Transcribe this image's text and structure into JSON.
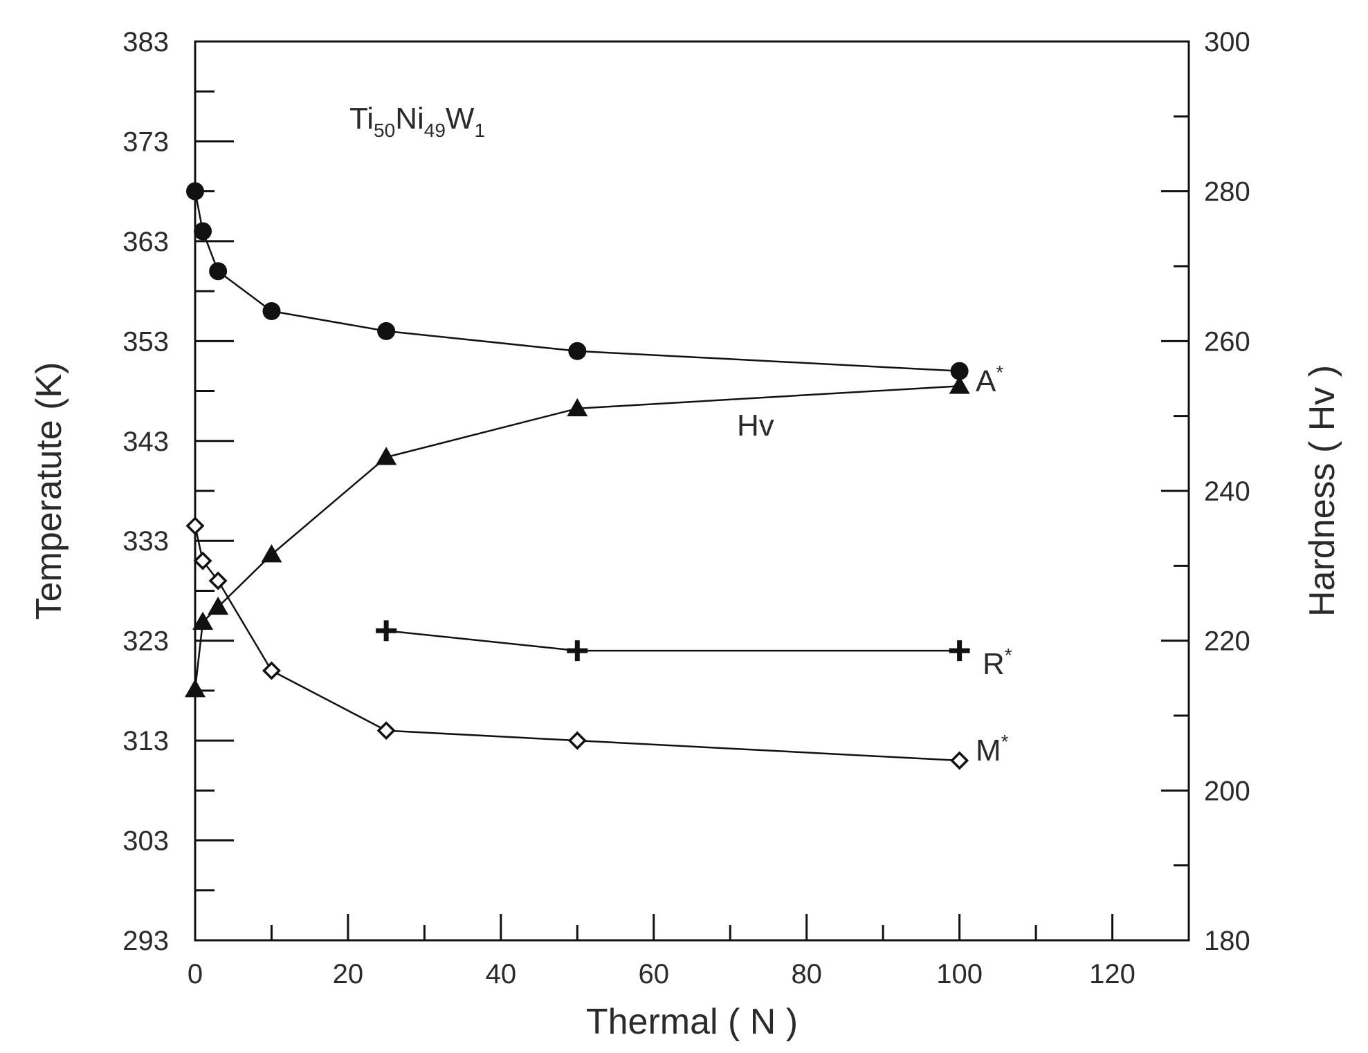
{
  "chart_data": {
    "type": "scatter",
    "title": "",
    "annotation": {
      "base": [
        "Ti",
        "Ni",
        "W"
      ],
      "sub": [
        "50",
        "49",
        "1"
      ]
    },
    "xlabel": "Thermal ( N )",
    "ylabel_left": "Temperatute   (K)",
    "ylabel_right": "Hardness ( Hv )",
    "xlim": [
      0,
      130
    ],
    "ylim_left": [
      293,
      383
    ],
    "ylim_right": [
      180,
      300
    ],
    "x_ticks": [
      "0",
      "20",
      "40",
      "60",
      "80",
      "100",
      "120"
    ],
    "y_left_ticks": [
      "293",
      "303",
      "313",
      "323",
      "333",
      "343",
      "353",
      "363",
      "373",
      "383"
    ],
    "y_right_ticks": [
      "180",
      "200",
      "220",
      "240",
      "260",
      "280",
      "300"
    ],
    "series": [
      {
        "name": "A*",
        "label": "A",
        "sup": "*",
        "axis": "left",
        "marker": "circle",
        "x": [
          0,
          1,
          3,
          10,
          25,
          50,
          100
        ],
        "y": [
          368,
          364,
          360,
          356,
          354,
          352,
          350
        ]
      },
      {
        "name": "Hv",
        "label": "Hv",
        "sup": "",
        "axis": "right",
        "marker": "triangle",
        "x": [
          0,
          1,
          3,
          10,
          25,
          50,
          100
        ],
        "y": [
          213.5,
          222.5,
          224.5,
          231.5,
          244.5,
          251,
          254
        ]
      },
      {
        "name": "R*",
        "label": "R",
        "sup": "*",
        "axis": "left",
        "marker": "plus",
        "x": [
          25,
          50,
          100
        ],
        "y": [
          324,
          322,
          322
        ]
      },
      {
        "name": "M*",
        "label": "M",
        "sup": "*",
        "axis": "left",
        "marker": "diamond",
        "x": [
          0,
          1,
          3,
          10,
          25,
          50,
          100
        ],
        "y": [
          334.5,
          331,
          329,
          320,
          314,
          313,
          311
        ]
      }
    ]
  }
}
